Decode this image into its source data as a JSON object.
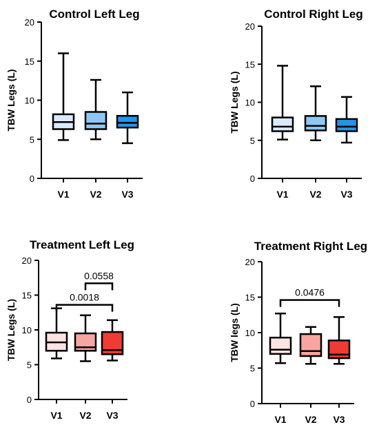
{
  "chart_data": [
    {
      "type": "box",
      "title": "Control Left Leg",
      "ylabel": "TBW Legs (L)",
      "ylim": [
        0,
        20
      ],
      "yticks": [
        "0",
        "5",
        "10",
        "15",
        "20"
      ],
      "categories": [
        "V1",
        "V2",
        "V3"
      ],
      "boxes": [
        {
          "min": 4.9,
          "q1": 6.3,
          "median": 7.2,
          "q3": 8.2,
          "max": 16.0,
          "color": "#dbeafb"
        },
        {
          "min": 5.0,
          "q1": 6.3,
          "median": 7.0,
          "q3": 8.5,
          "max": 12.6,
          "color": "#8ec7f2"
        },
        {
          "min": 4.5,
          "q1": 6.5,
          "median": 7.1,
          "q3": 8.0,
          "max": 11.0,
          "color": "#2196e8"
        }
      ],
      "annotations": []
    },
    {
      "type": "box",
      "title": "Control Right Leg",
      "ylabel": "TBW Legs (L)",
      "ylim": [
        0,
        20
      ],
      "yticks": [
        "0",
        "5",
        "10",
        "15",
        "20"
      ],
      "categories": [
        "V1",
        "V2",
        "V3"
      ],
      "boxes": [
        {
          "min": 5.1,
          "q1": 6.2,
          "median": 6.8,
          "q3": 8.0,
          "max": 14.8,
          "color": "#dbeafb"
        },
        {
          "min": 5.0,
          "q1": 6.3,
          "median": 6.9,
          "q3": 8.2,
          "max": 12.1,
          "color": "#8ec7f2"
        },
        {
          "min": 4.7,
          "q1": 6.2,
          "median": 6.8,
          "q3": 7.8,
          "max": 10.7,
          "color": "#2196e8"
        }
      ],
      "annotations": []
    },
    {
      "type": "box",
      "title": "Treatment Left Leg",
      "ylabel": "TBW Legs (L)",
      "ylim": [
        0,
        20
      ],
      "yticks": [
        "0",
        "5",
        "10",
        "15",
        "20"
      ],
      "categories": [
        "V1",
        "V2",
        "V3"
      ],
      "boxes": [
        {
          "min": 5.9,
          "q1": 7.0,
          "median": 8.2,
          "q3": 9.6,
          "max": 13.1,
          "color": "#fde3e1"
        },
        {
          "min": 5.5,
          "q1": 7.0,
          "median": 7.5,
          "q3": 9.5,
          "max": 12.1,
          "color": "#f6a5a1"
        },
        {
          "min": 5.6,
          "q1": 6.5,
          "median": 7.1,
          "q3": 9.7,
          "max": 11.4,
          "color": "#ee3b33"
        }
      ],
      "annotations": [
        {
          "from": 0,
          "to": 2,
          "y": 13.6,
          "text": "0.0018"
        },
        {
          "from": 1,
          "to": 2,
          "y": 16.7,
          "text": "0.0558"
        }
      ]
    },
    {
      "type": "box",
      "title": "Treatment Right Leg",
      "ylabel": "TBW legs (L)",
      "ylim": [
        0,
        20
      ],
      "yticks": [
        "0",
        "5",
        "10",
        "15",
        "20"
      ],
      "categories": [
        "V1",
        "V2",
        "V3"
      ],
      "boxes": [
        {
          "min": 5.7,
          "q1": 7.0,
          "median": 7.6,
          "q3": 9.3,
          "max": 12.7,
          "color": "#fde3e1"
        },
        {
          "min": 5.6,
          "q1": 6.7,
          "median": 7.4,
          "q3": 9.8,
          "max": 10.8,
          "color": "#f6a5a1"
        },
        {
          "min": 5.6,
          "q1": 6.4,
          "median": 6.9,
          "q3": 8.9,
          "max": 12.2,
          "color": "#ee3b33"
        }
      ],
      "annotations": [
        {
          "from": 0,
          "to": 2,
          "y": 14.6,
          "text": "0.0476"
        }
      ]
    }
  ]
}
